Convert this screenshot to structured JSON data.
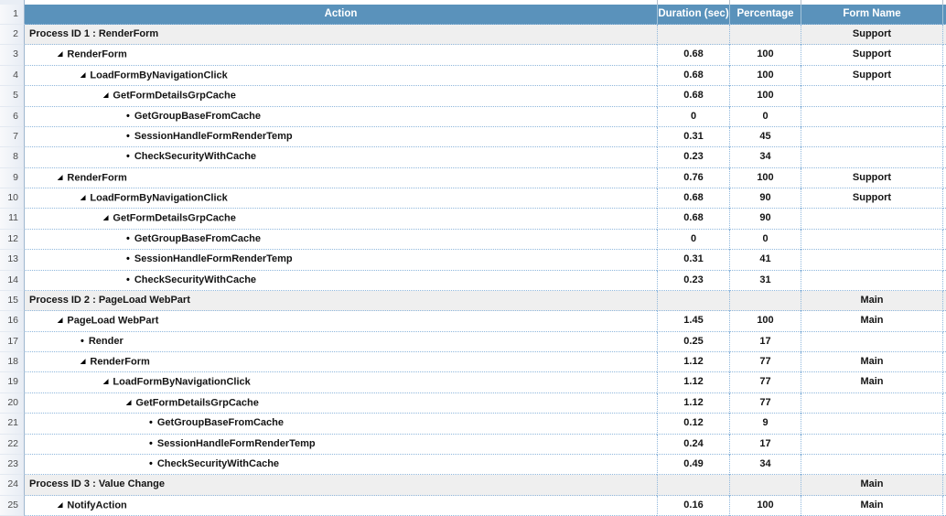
{
  "colors": {
    "header_bg": "#5A92BB",
    "header_text": "#FFFFFF",
    "process_bg": "#EFEFEF",
    "dot": "#8FB7DC",
    "gutter_border": "#9EB6CE"
  },
  "table": {
    "header_row_number": "1",
    "columns": {
      "action": "Action",
      "duration": "Duration (sec)",
      "percentage": "Percentage",
      "form_name": "Form Name"
    },
    "rows": [
      {
        "num": 2,
        "type": "process",
        "marker": "none",
        "level": 0,
        "action": "Process ID 1 : RenderForm",
        "duration": "",
        "percentage": "",
        "form": "Support"
      },
      {
        "num": 3,
        "type": "item",
        "marker": "collapse",
        "level": 1,
        "action": "RenderForm",
        "duration": "0.68",
        "percentage": "100",
        "form": "Support"
      },
      {
        "num": 4,
        "type": "item",
        "marker": "collapse",
        "level": 2,
        "action": "LoadFormByNavigationClick",
        "duration": "0.68",
        "percentage": "100",
        "form": "Support"
      },
      {
        "num": 5,
        "type": "item",
        "marker": "collapse",
        "level": 3,
        "action": "GetFormDetailsGrpCache",
        "duration": "0.68",
        "percentage": "100",
        "form": ""
      },
      {
        "num": 6,
        "type": "item",
        "marker": "bullet",
        "level": 4,
        "action": "GetGroupBaseFromCache",
        "duration": "0",
        "percentage": "0",
        "form": ""
      },
      {
        "num": 7,
        "type": "item",
        "marker": "bullet",
        "level": 4,
        "action": "SessionHandleFormRenderTemp",
        "duration": "0.31",
        "percentage": "45",
        "form": ""
      },
      {
        "num": 8,
        "type": "item",
        "marker": "bullet",
        "level": 4,
        "action": "CheckSecurityWithCache",
        "duration": "0.23",
        "percentage": "34",
        "form": ""
      },
      {
        "num": 9,
        "type": "item",
        "marker": "collapse",
        "level": 1,
        "action": "RenderForm",
        "duration": "0.76",
        "percentage": "100",
        "form": "Support"
      },
      {
        "num": 10,
        "type": "item",
        "marker": "collapse",
        "level": 2,
        "action": "LoadFormByNavigationClick",
        "duration": "0.68",
        "percentage": "90",
        "form": "Support"
      },
      {
        "num": 11,
        "type": "item",
        "marker": "collapse",
        "level": 3,
        "action": "GetFormDetailsGrpCache",
        "duration": "0.68",
        "percentage": "90",
        "form": ""
      },
      {
        "num": 12,
        "type": "item",
        "marker": "bullet",
        "level": 4,
        "action": "GetGroupBaseFromCache",
        "duration": "0",
        "percentage": "0",
        "form": ""
      },
      {
        "num": 13,
        "type": "item",
        "marker": "bullet",
        "level": 4,
        "action": "SessionHandleFormRenderTemp",
        "duration": "0.31",
        "percentage": "41",
        "form": ""
      },
      {
        "num": 14,
        "type": "item",
        "marker": "bullet",
        "level": 4,
        "action": "CheckSecurityWithCache",
        "duration": "0.23",
        "percentage": "31",
        "form": ""
      },
      {
        "num": 15,
        "type": "process",
        "marker": "none",
        "level": 0,
        "action": "Process ID 2 : PageLoad WebPart",
        "duration": "",
        "percentage": "",
        "form": "Main"
      },
      {
        "num": 16,
        "type": "item",
        "marker": "collapse",
        "level": 1,
        "action": "PageLoad WebPart",
        "duration": "1.45",
        "percentage": "100",
        "form": "Main"
      },
      {
        "num": 17,
        "type": "item",
        "marker": "bullet",
        "level": 2,
        "action": "Render",
        "duration": "0.25",
        "percentage": "17",
        "form": ""
      },
      {
        "num": 18,
        "type": "item",
        "marker": "collapse",
        "level": 2,
        "action": "RenderForm",
        "duration": "1.12",
        "percentage": "77",
        "form": "Main"
      },
      {
        "num": 19,
        "type": "item",
        "marker": "collapse",
        "level": 3,
        "action": "LoadFormByNavigationClick",
        "duration": "1.12",
        "percentage": "77",
        "form": "Main"
      },
      {
        "num": 20,
        "type": "item",
        "marker": "collapse",
        "level": 4,
        "action": "GetFormDetailsGrpCache",
        "duration": "1.12",
        "percentage": "77",
        "form": ""
      },
      {
        "num": 21,
        "type": "item",
        "marker": "bullet",
        "level": 5,
        "action": "GetGroupBaseFromCache",
        "duration": "0.12",
        "percentage": "9",
        "form": ""
      },
      {
        "num": 22,
        "type": "item",
        "marker": "bullet",
        "level": 5,
        "action": "SessionHandleFormRenderTemp",
        "duration": "0.24",
        "percentage": "17",
        "form": ""
      },
      {
        "num": 23,
        "type": "item",
        "marker": "bullet",
        "level": 5,
        "action": "CheckSecurityWithCache",
        "duration": "0.49",
        "percentage": "34",
        "form": ""
      },
      {
        "num": 24,
        "type": "process",
        "marker": "none",
        "level": 0,
        "action": "Process ID 3 : Value Change",
        "duration": "",
        "percentage": "",
        "form": "Main"
      },
      {
        "num": 25,
        "type": "item",
        "marker": "collapse",
        "level": 1,
        "action": "NotifyAction",
        "duration": "0.16",
        "percentage": "100",
        "form": "Main"
      }
    ]
  }
}
